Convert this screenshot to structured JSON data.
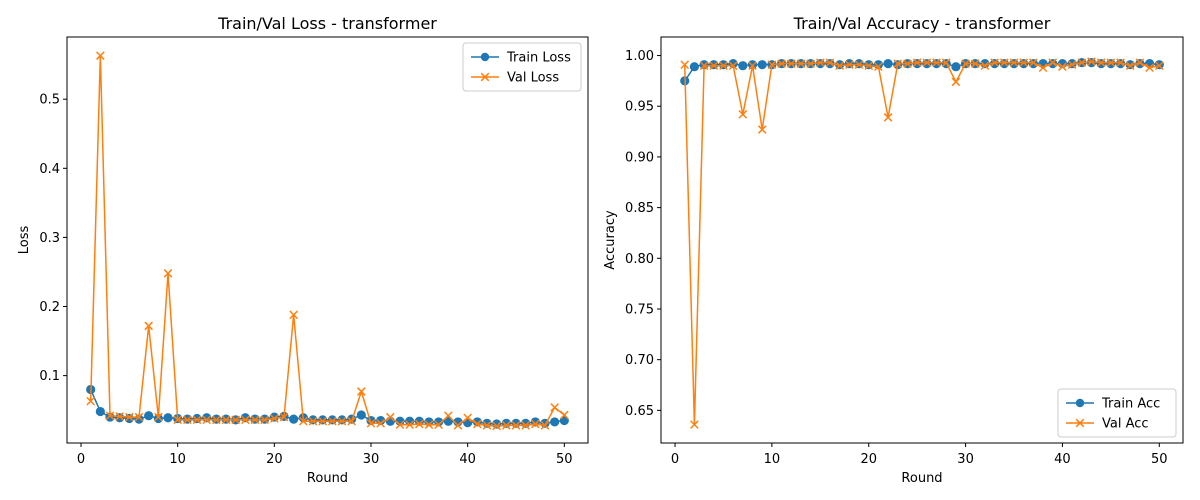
{
  "colors": {
    "train": "#1f77b4",
    "val": "#ff7f0e"
  },
  "chart_data": [
    {
      "type": "line",
      "title": "Train/Val Loss - transformer",
      "xlabel": "Round",
      "ylabel": "Loss",
      "xlim": [
        -1.45,
        52.45
      ],
      "ylim": [
        0.0025,
        0.59
      ],
      "xticks": [
        0,
        10,
        20,
        30,
        40,
        50
      ],
      "yticks": [
        0.1,
        0.2,
        0.3,
        0.4,
        0.5
      ],
      "ytick_labels": [
        "0.1",
        "0.2",
        "0.3",
        "0.4",
        "0.5"
      ],
      "grid": false,
      "legend_position": "top-right",
      "x": [
        1,
        2,
        3,
        4,
        5,
        6,
        7,
        8,
        9,
        10,
        11,
        12,
        13,
        14,
        15,
        16,
        17,
        18,
        19,
        20,
        21,
        22,
        23,
        24,
        25,
        26,
        27,
        28,
        29,
        30,
        31,
        32,
        33,
        34,
        35,
        36,
        37,
        38,
        39,
        40,
        41,
        42,
        43,
        44,
        45,
        46,
        47,
        48,
        49,
        50
      ],
      "series": [
        {
          "name": "Train Loss",
          "marker": "circle",
          "color": "#1f77b4",
          "values": [
            0.08,
            0.048,
            0.04,
            0.039,
            0.038,
            0.037,
            0.042,
            0.038,
            0.039,
            0.038,
            0.037,
            0.038,
            0.039,
            0.037,
            0.037,
            0.036,
            0.039,
            0.037,
            0.037,
            0.04,
            0.041,
            0.037,
            0.039,
            0.036,
            0.036,
            0.036,
            0.036,
            0.037,
            0.043,
            0.035,
            0.035,
            0.034,
            0.034,
            0.034,
            0.034,
            0.033,
            0.033,
            0.034,
            0.033,
            0.032,
            0.033,
            0.031,
            0.03,
            0.031,
            0.031,
            0.031,
            0.033,
            0.031,
            0.033,
            0.035
          ]
        },
        {
          "name": "Val Loss",
          "marker": "x",
          "color": "#ff7f0e",
          "values": [
            0.063,
            0.563,
            0.042,
            0.041,
            0.04,
            0.04,
            0.172,
            0.04,
            0.248,
            0.036,
            0.036,
            0.036,
            0.036,
            0.036,
            0.036,
            0.036,
            0.036,
            0.036,
            0.036,
            0.038,
            0.04,
            0.188,
            0.034,
            0.034,
            0.034,
            0.034,
            0.034,
            0.034,
            0.077,
            0.031,
            0.031,
            0.04,
            0.029,
            0.029,
            0.03,
            0.029,
            0.029,
            0.042,
            0.028,
            0.039,
            0.03,
            0.028,
            0.027,
            0.028,
            0.028,
            0.028,
            0.03,
            0.028,
            0.054,
            0.043
          ]
        }
      ]
    },
    {
      "type": "line",
      "title": "Train/Val Accuracy - transformer",
      "xlabel": "Round",
      "ylabel": "Accuracy",
      "xlim": [
        -1.45,
        52.45
      ],
      "ylim": [
        0.6178,
        1.0183
      ],
      "xticks": [
        0,
        10,
        20,
        30,
        40,
        50
      ],
      "yticks": [
        0.65,
        0.7,
        0.75,
        0.8,
        0.85,
        0.9,
        0.95,
        1.0
      ],
      "ytick_labels": [
        "0.65",
        "0.70",
        "0.75",
        "0.80",
        "0.85",
        "0.90",
        "0.95",
        "1.00"
      ],
      "grid": false,
      "legend_position": "bottom-right",
      "x": [
        1,
        2,
        3,
        4,
        5,
        6,
        7,
        8,
        9,
        10,
        11,
        12,
        13,
        14,
        15,
        16,
        17,
        18,
        19,
        20,
        21,
        22,
        23,
        24,
        25,
        26,
        27,
        28,
        29,
        30,
        31,
        32,
        33,
        34,
        35,
        36,
        37,
        38,
        39,
        40,
        41,
        42,
        43,
        44,
        45,
        46,
        47,
        48,
        49,
        50
      ],
      "series": [
        {
          "name": "Train Acc",
          "marker": "circle",
          "color": "#1f77b4",
          "values": [
            0.975,
            0.989,
            0.991,
            0.991,
            0.991,
            0.992,
            0.99,
            0.991,
            0.991,
            0.991,
            0.992,
            0.992,
            0.992,
            0.992,
            0.992,
            0.992,
            0.991,
            0.992,
            0.992,
            0.991,
            0.991,
            0.992,
            0.991,
            0.992,
            0.992,
            0.992,
            0.992,
            0.992,
            0.989,
            0.992,
            0.992,
            0.992,
            0.992,
            0.992,
            0.992,
            0.992,
            0.992,
            0.992,
            0.992,
            0.992,
            0.992,
            0.993,
            0.993,
            0.992,
            0.992,
            0.992,
            0.991,
            0.992,
            0.992,
            0.991
          ]
        },
        {
          "name": "Val Acc",
          "marker": "x",
          "color": "#ff7f0e",
          "values": [
            0.991,
            0.636,
            0.99,
            0.99,
            0.99,
            0.99,
            0.942,
            0.99,
            0.927,
            0.991,
            0.992,
            0.992,
            0.992,
            0.992,
            0.993,
            0.993,
            0.99,
            0.991,
            0.991,
            0.99,
            0.989,
            0.939,
            0.992,
            0.992,
            0.993,
            0.993,
            0.993,
            0.993,
            0.974,
            0.992,
            0.992,
            0.99,
            0.993,
            0.993,
            0.993,
            0.993,
            0.993,
            0.988,
            0.993,
            0.989,
            0.991,
            0.993,
            0.994,
            0.993,
            0.993,
            0.993,
            0.99,
            0.993,
            0.988,
            0.99
          ]
        }
      ]
    }
  ]
}
